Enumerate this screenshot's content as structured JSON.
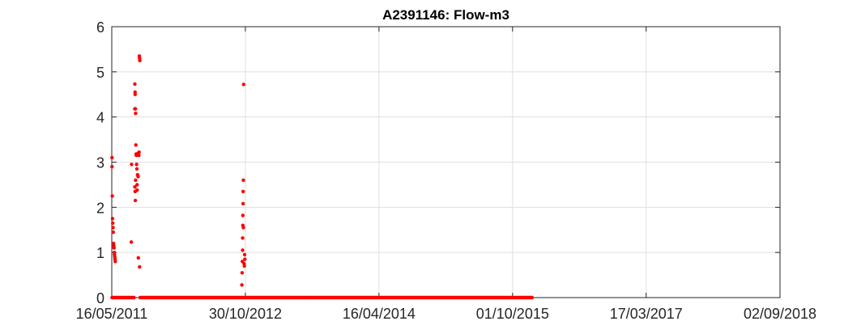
{
  "chart_data": {
    "type": "scatter",
    "title": "A2391146: Flow-m3",
    "xlabel": "",
    "ylabel": "",
    "x_axis_type": "date",
    "xlim": [
      "2011-05-16",
      "2018-09-02"
    ],
    "ylim": [
      0,
      6
    ],
    "x_ticks": [
      "2011-05-16",
      "2012-10-30",
      "2014-04-16",
      "2015-10-01",
      "2017-03-17",
      "2018-09-02"
    ],
    "x_tick_labels": [
      "16/05/2011",
      "30/10/2012",
      "16/04/2014",
      "01/10/2015",
      "17/03/2017",
      "02/09/2018"
    ],
    "y_ticks": [
      0,
      1,
      2,
      3,
      4,
      5,
      6
    ],
    "y_tick_labels": [
      "0",
      "1",
      "2",
      "3",
      "4",
      "5",
      "6"
    ],
    "grid": true,
    "marker_color": "#ff0000",
    "series": [
      {
        "points": [
          [
            "2011-05-17",
            3.1
          ],
          [
            "2011-05-17",
            2.9
          ],
          [
            "2011-05-18",
            2.25
          ],
          [
            "2011-05-19",
            1.75
          ],
          [
            "2011-05-20",
            1.65
          ],
          [
            "2011-05-21",
            1.55
          ],
          [
            "2011-05-22",
            1.45
          ],
          [
            "2011-05-23",
            1.2
          ],
          [
            "2011-05-24",
            1.15
          ],
          [
            "2011-05-25",
            1.1
          ],
          [
            "2011-05-26",
            1.0
          ],
          [
            "2011-05-27",
            0.95
          ],
          [
            "2011-05-28",
            0.9
          ],
          [
            "2011-05-29",
            0.85
          ],
          [
            "2011-05-30",
            0.8
          ],
          [
            "2011-08-02",
            1.23
          ],
          [
            "2011-08-03",
            2.95
          ],
          [
            "2011-08-16",
            4.73
          ],
          [
            "2011-08-17",
            4.55
          ],
          [
            "2011-08-17",
            4.5
          ],
          [
            "2011-08-16",
            4.18
          ],
          [
            "2011-08-18",
            4.18
          ],
          [
            "2011-08-19",
            4.08
          ],
          [
            "2011-08-16",
            2.45
          ],
          [
            "2011-08-17",
            2.35
          ],
          [
            "2011-08-18",
            2.15
          ],
          [
            "2011-08-19",
            2.6
          ],
          [
            "2011-08-20",
            3.38
          ],
          [
            "2011-08-21",
            3.18
          ],
          [
            "2011-08-22",
            3.15
          ],
          [
            "2011-08-23",
            2.95
          ],
          [
            "2011-08-24",
            2.85
          ],
          [
            "2011-08-25",
            2.5
          ],
          [
            "2011-08-25",
            2.38
          ],
          [
            "2011-08-27",
            2.72
          ],
          [
            "2011-08-29",
            2.68
          ],
          [
            "2011-08-30",
            3.2
          ],
          [
            "2011-09-01",
            3.15
          ],
          [
            "2011-09-02",
            3.22
          ],
          [
            "2011-09-03",
            5.35
          ],
          [
            "2011-09-04",
            5.3
          ],
          [
            "2011-09-05",
            5.25
          ],
          [
            "2011-08-30",
            0.88
          ],
          [
            "2011-09-04",
            0.68
          ],
          [
            "2012-10-16",
            0.28
          ],
          [
            "2012-10-17",
            0.55
          ],
          [
            "2012-10-18",
            0.8
          ],
          [
            "2012-10-19",
            1.05
          ],
          [
            "2012-10-19",
            1.32
          ],
          [
            "2012-10-20",
            1.6
          ],
          [
            "2012-10-20",
            1.82
          ],
          [
            "2012-10-21",
            2.08
          ],
          [
            "2012-10-21",
            2.35
          ],
          [
            "2012-10-22",
            2.6
          ],
          [
            "2012-10-22",
            1.55
          ],
          [
            "2012-10-23",
            4.72
          ],
          [
            "2012-10-25",
            0.75
          ],
          [
            "2012-10-26",
            0.7
          ],
          [
            "2012-10-27",
            0.95
          ],
          [
            "2012-10-28",
            0.85
          ]
        ],
        "zero_runs": [
          [
            "2011-05-17",
            "2011-08-16"
          ],
          [
            "2011-09-06",
            "2015-12-20"
          ]
        ]
      }
    ]
  }
}
